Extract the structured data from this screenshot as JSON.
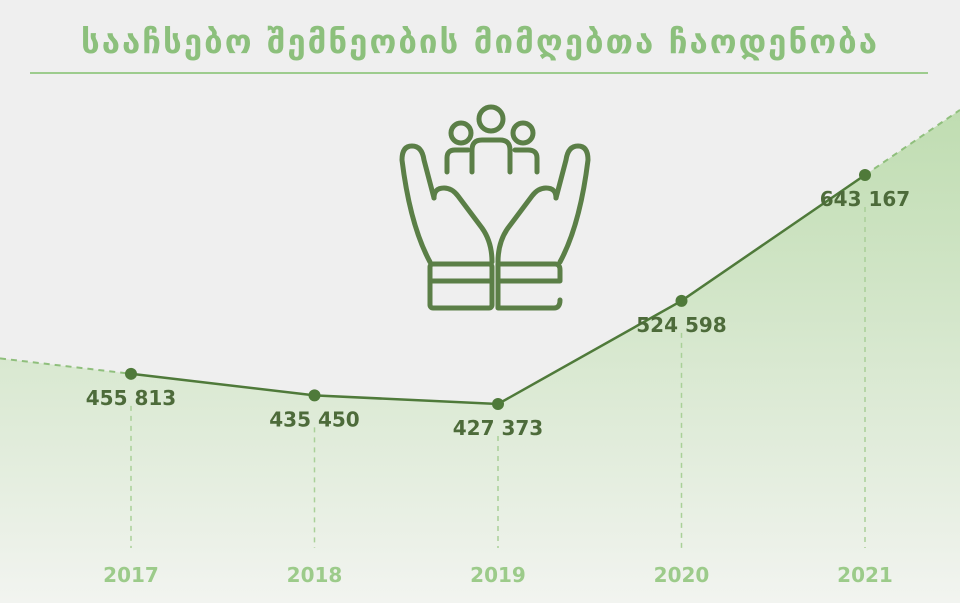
{
  "title": "სააჩსებო შემნეობის მიმღებთა ჩაოდენობა",
  "colors": {
    "background": "#efefef",
    "title": "#8cc07c",
    "line": "#4f7a3a",
    "area": "#c9e2bd",
    "year_labels": "#9ccb8a",
    "value_labels": "#4d6b3a"
  },
  "icon": "hands-holding-people-icon",
  "chart_data": {
    "type": "area",
    "title": "სააჩსებო შემნეობის მიმღებთა ჩაოდენობა",
    "x": [
      "2017",
      "2018",
      "2019",
      "2020",
      "2021"
    ],
    "values": [
      455813,
      435450,
      427373,
      524598,
      643167
    ],
    "value_labels": [
      "455 813",
      "435 450",
      "427 373",
      "524 598",
      "643 167"
    ],
    "xlabel": "",
    "ylabel": "",
    "grid": false,
    "legend": "none"
  }
}
